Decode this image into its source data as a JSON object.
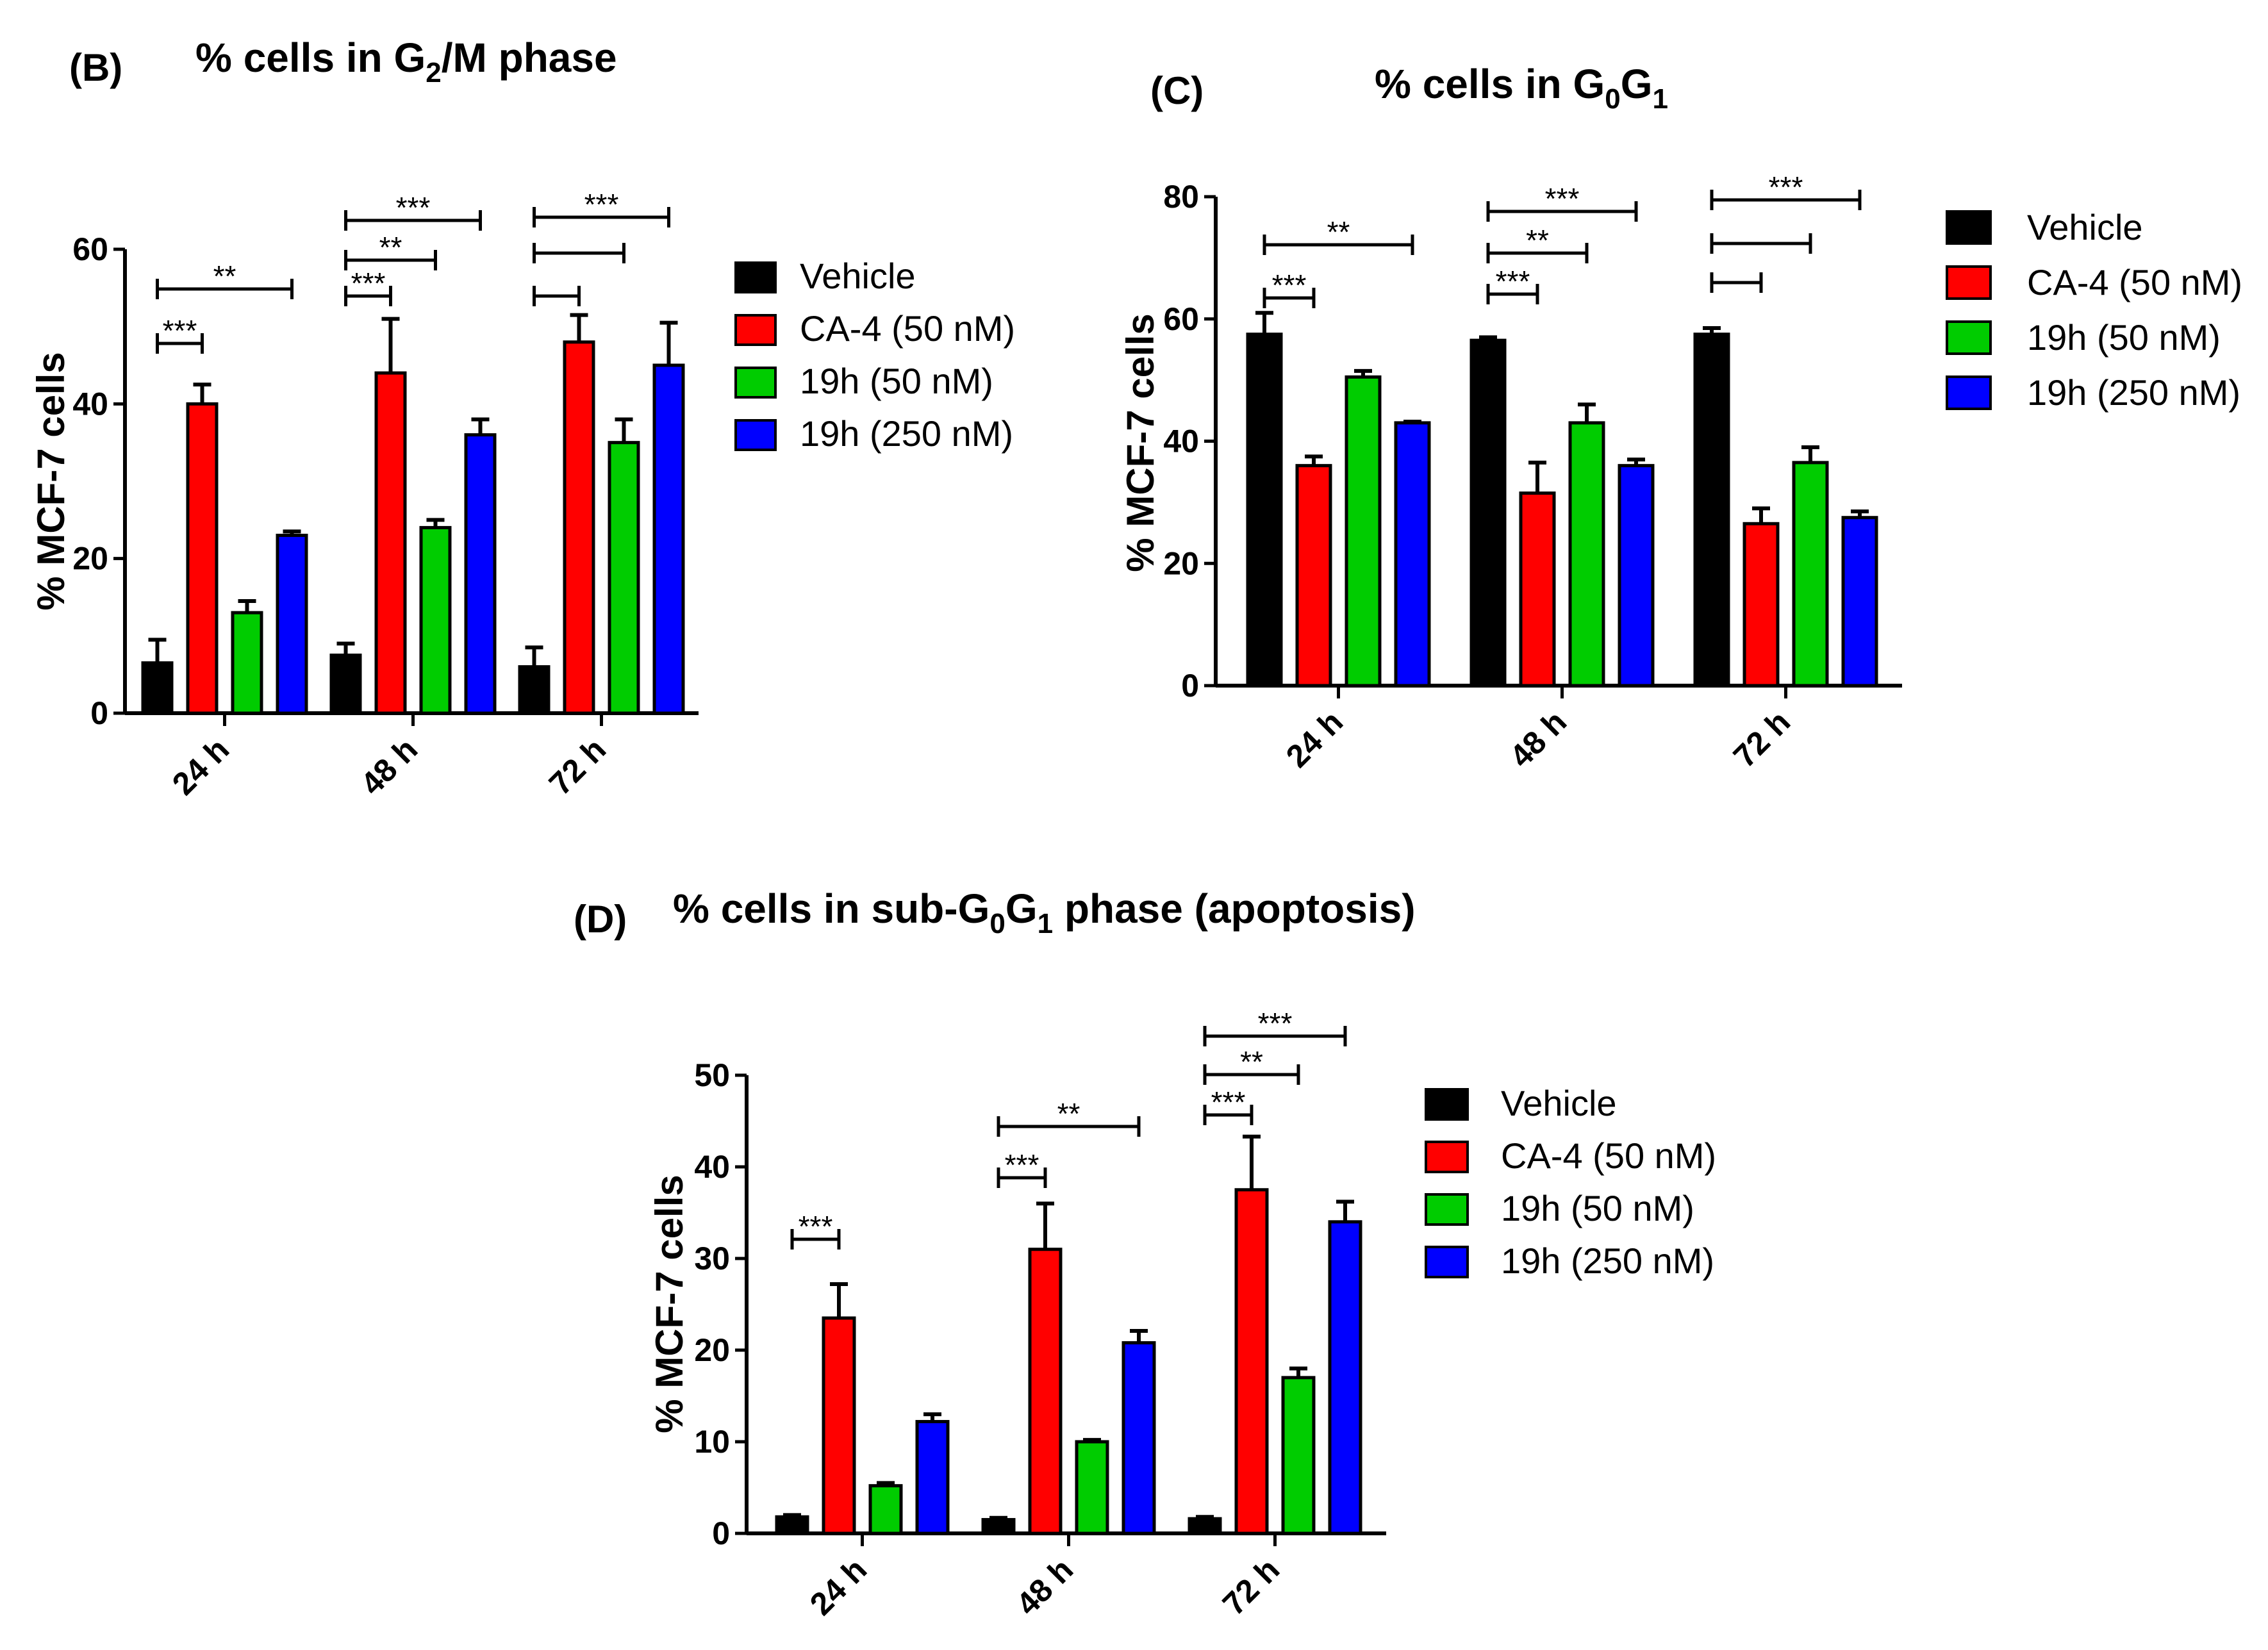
{
  "chart_data": [
    {
      "type": "bar",
      "id": "B",
      "panel_label": "(B)",
      "title": {
        "pre": "% cells in G",
        "sub": "2",
        "post": "/M phase"
      },
      "ylabel": "% MCF-7 cells",
      "ylim": [
        0,
        60
      ],
      "yticks": [
        "0",
        "20",
        "40",
        "60"
      ],
      "categories": [
        "24 h",
        "48 h",
        "72 h"
      ],
      "series": [
        {
          "name": "Vehicle",
          "color": "#000000",
          "values": [
            6.5,
            7.5,
            6
          ],
          "errors": [
            3,
            1.5,
            2.5
          ]
        },
        {
          "name": "CA-4 (50 nM)",
          "color": "#ff0000",
          "values": [
            40,
            44,
            48
          ],
          "errors": [
            2.5,
            7,
            3.5
          ]
        },
        {
          "name": "19h (50 nM)",
          "color": "#00cc00",
          "values": [
            13,
            24,
            35
          ],
          "errors": [
            1.5,
            1,
            3
          ]
        },
        {
          "name": "19h (250 nM)",
          "color": "#0000ff",
          "values": [
            23,
            36,
            45
          ],
          "errors": [
            0.5,
            2,
            5.5
          ]
        }
      ],
      "significance": [
        {
          "group": 0,
          "to": 1,
          "label": "***"
        },
        {
          "group": 0,
          "to": 3,
          "label": "**"
        },
        {
          "group": 1,
          "to": 1,
          "label": "***"
        },
        {
          "group": 1,
          "to": 2,
          "label": "**"
        },
        {
          "group": 1,
          "to": 3,
          "label": "***"
        },
        {
          "group": 2,
          "to": 1,
          "label": ""
        },
        {
          "group": 2,
          "to": 2,
          "label": ""
        },
        {
          "group": 2,
          "to": 3,
          "label": "***"
        }
      ]
    },
    {
      "type": "bar",
      "id": "C",
      "panel_label": "(C)",
      "title": {
        "pre": "% cells in G",
        "sub": "0",
        "mid": "G",
        "sub2": "1",
        "post": ""
      },
      "ylabel": "% MCF-7 cells",
      "ylim": [
        0,
        80
      ],
      "yticks": [
        "0",
        "20",
        "40",
        "60",
        "80"
      ],
      "categories": [
        "24 h",
        "48 h",
        "72 h"
      ],
      "series": [
        {
          "name": "Vehicle",
          "color": "#000000",
          "values": [
            57.5,
            56.5,
            57.5
          ],
          "errors": [
            3.5,
            0.5,
            1
          ]
        },
        {
          "name": "CA-4 (50 nM)",
          "color": "#ff0000",
          "values": [
            36,
            31.5,
            26.5
          ],
          "errors": [
            1.5,
            5,
            2.5
          ]
        },
        {
          "name": "19h (50 nM)",
          "color": "#00cc00",
          "values": [
            50.5,
            43,
            36.5
          ],
          "errors": [
            1,
            3,
            2.5
          ]
        },
        {
          "name": "19h (250 nM)",
          "color": "#0000ff",
          "values": [
            43,
            36,
            27.5
          ],
          "errors": [
            0.2,
            1,
            1
          ]
        }
      ],
      "significance": [
        {
          "group": 0,
          "to": 1,
          "label": "***"
        },
        {
          "group": 0,
          "to": 3,
          "label": "**"
        },
        {
          "group": 1,
          "to": 1,
          "label": "***"
        },
        {
          "group": 1,
          "to": 2,
          "label": "**"
        },
        {
          "group": 1,
          "to": 3,
          "label": "***"
        },
        {
          "group": 2,
          "to": 1,
          "label": ""
        },
        {
          "group": 2,
          "to": 2,
          "label": ""
        },
        {
          "group": 2,
          "to": 3,
          "label": "***"
        }
      ]
    },
    {
      "type": "bar",
      "id": "D",
      "panel_label": "(D)",
      "title": {
        "pre": "% cells in sub-G",
        "sub": "0",
        "mid": "G",
        "sub2": "1",
        "post": " phase (apoptosis)"
      },
      "ylabel": "% MCF-7 cells",
      "ylim": [
        0,
        50
      ],
      "yticks": [
        "0",
        "10",
        "20",
        "30",
        "40",
        "50"
      ],
      "categories": [
        "24 h",
        "48 h",
        "72 h"
      ],
      "series": [
        {
          "name": "Vehicle",
          "color": "#000000",
          "values": [
            1.8,
            1.5,
            1.6
          ],
          "errors": [
            0.2,
            0.2,
            0.2
          ]
        },
        {
          "name": "CA-4 (50 nM)",
          "color": "#ff0000",
          "values": [
            23.5,
            31,
            37.5
          ],
          "errors": [
            3.7,
            5,
            5.8
          ]
        },
        {
          "name": "19h (50 nM)",
          "color": "#00cc00",
          "values": [
            5.2,
            10,
            17
          ],
          "errors": [
            0.3,
            0.2,
            1
          ]
        },
        {
          "name": "19h (250 nM)",
          "color": "#0000ff",
          "values": [
            12.2,
            20.8,
            34
          ],
          "errors": [
            0.8,
            1.3,
            2.2
          ]
        }
      ],
      "significance": [
        {
          "group": 0,
          "to": 1,
          "label": "***"
        },
        {
          "group": 1,
          "to": 1,
          "label": "***"
        },
        {
          "group": 1,
          "to": 3,
          "label": "**"
        },
        {
          "group": 2,
          "to": 1,
          "label": "***"
        },
        {
          "group": 2,
          "to": 2,
          "label": "**"
        },
        {
          "group": 2,
          "to": 3,
          "label": "***"
        }
      ]
    }
  ]
}
